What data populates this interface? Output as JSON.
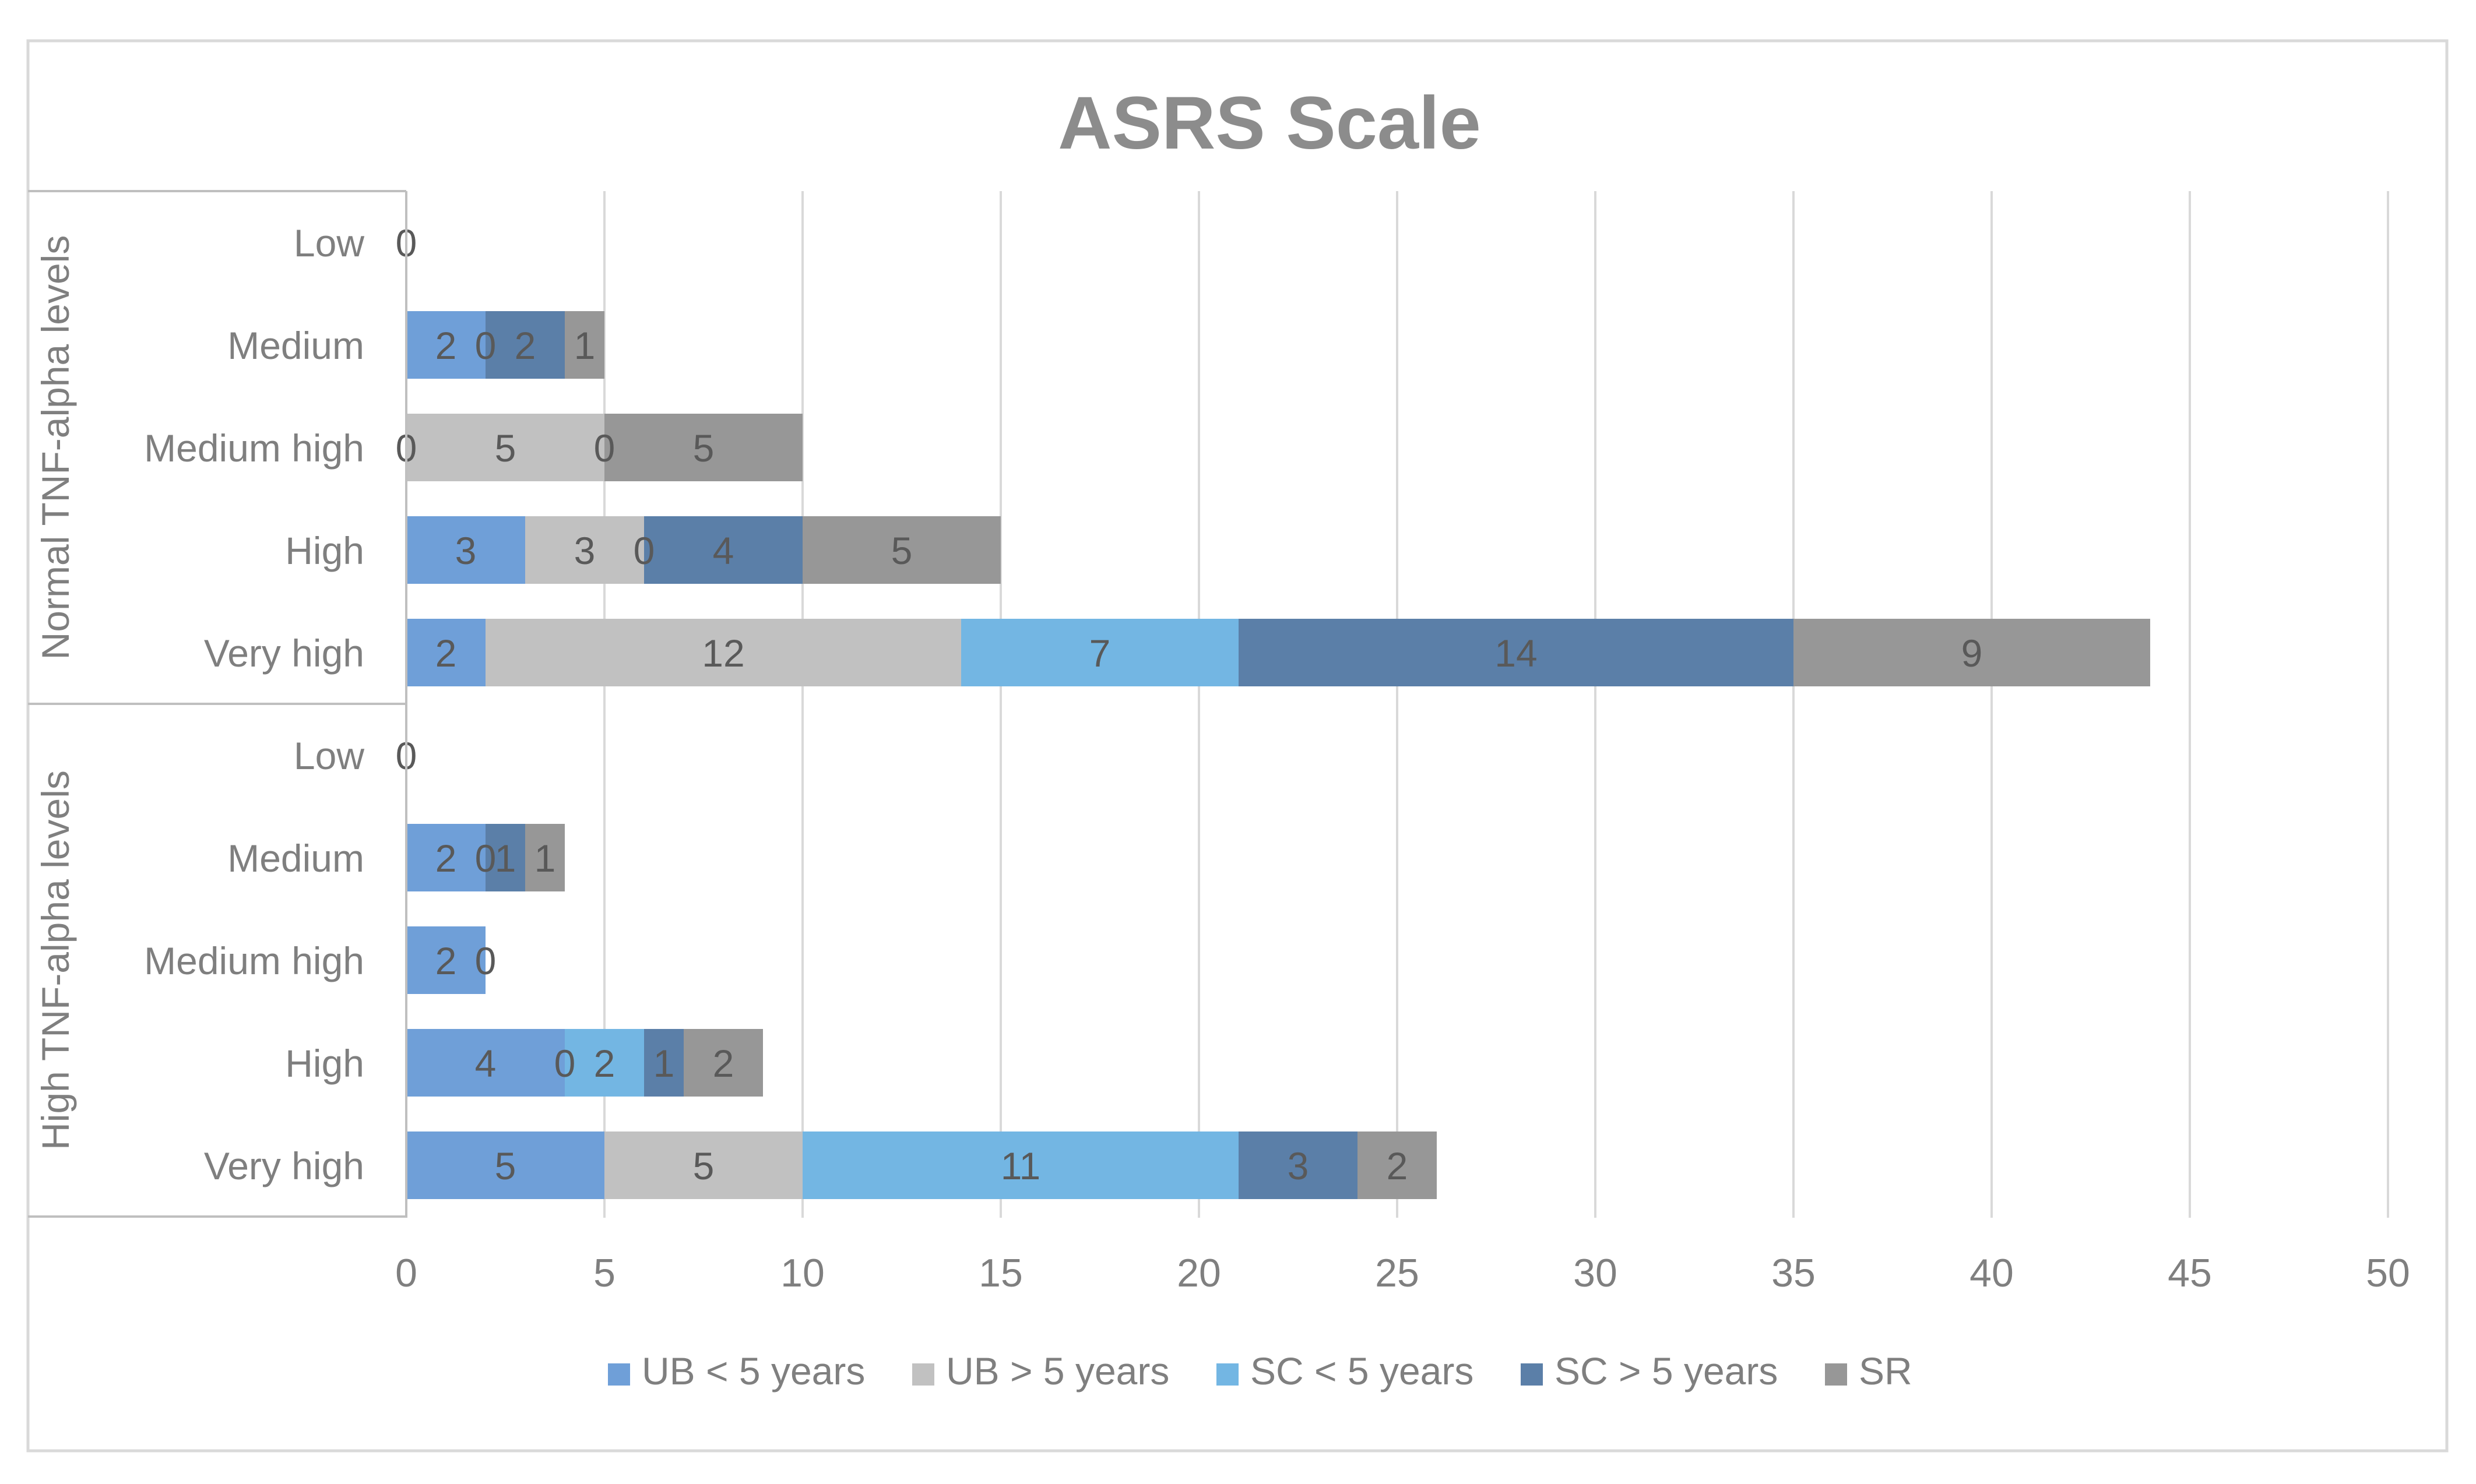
{
  "chart_data": {
    "type": "bar",
    "orientation": "horizontal",
    "stacked": true,
    "title": "ASRS Scale",
    "xlabel": "",
    "ylabel": "",
    "xlim": [
      0,
      50
    ],
    "x_ticks": [
      0,
      5,
      10,
      15,
      20,
      25,
      30,
      35,
      40,
      45,
      50
    ],
    "grid": true,
    "legend_position": "bottom",
    "groups": [
      {
        "label": "Normal TNF-alpha levels",
        "categories": [
          "Low",
          "Medium",
          "Medium high",
          "High",
          "Very high"
        ]
      },
      {
        "label": "High TNF-alpha levels",
        "categories": [
          "Low",
          "Medium",
          "Medium high",
          "High",
          "Very high"
        ]
      }
    ],
    "series": [
      {
        "name": "UB < 5 years",
        "color": "#6f9fd8",
        "values": [
          null,
          2,
          0,
          3,
          2,
          null,
          2,
          2,
          4,
          5
        ],
        "labels": [
          "0",
          "2",
          "0",
          "3",
          "2",
          "0",
          "2",
          "2",
          "4",
          "5"
        ]
      },
      {
        "name": "UB > 5 years",
        "color": "#c1c1c1",
        "values": [
          null,
          0,
          5,
          3,
          12,
          null,
          0,
          0,
          0,
          5
        ],
        "labels": [
          "",
          "0",
          "5",
          "3",
          "12",
          "",
          "0",
          "0",
          "0",
          "5"
        ]
      },
      {
        "name": "SC < 5 years",
        "color": "#73b6e3",
        "values": [
          null,
          null,
          null,
          0,
          7,
          null,
          null,
          null,
          2,
          11
        ],
        "labels": [
          "",
          "",
          "",
          "0",
          "7",
          "",
          "",
          "",
          "2",
          "11"
        ]
      },
      {
        "name": "SC > 5 years",
        "color": "#5b7fa8",
        "values": [
          null,
          2,
          0,
          4,
          14,
          null,
          1,
          null,
          1,
          3
        ],
        "labels": [
          "",
          "2",
          "0",
          "4",
          "14",
          "",
          "1",
          "",
          "1",
          "3"
        ]
      },
      {
        "name": "SR",
        "color": "#979797",
        "values": [
          null,
          1,
          5,
          5,
          9,
          null,
          1,
          null,
          2,
          2
        ],
        "labels": [
          "",
          "1",
          "5",
          "5",
          "9",
          "",
          "1",
          "",
          "2",
          "2"
        ]
      }
    ]
  }
}
